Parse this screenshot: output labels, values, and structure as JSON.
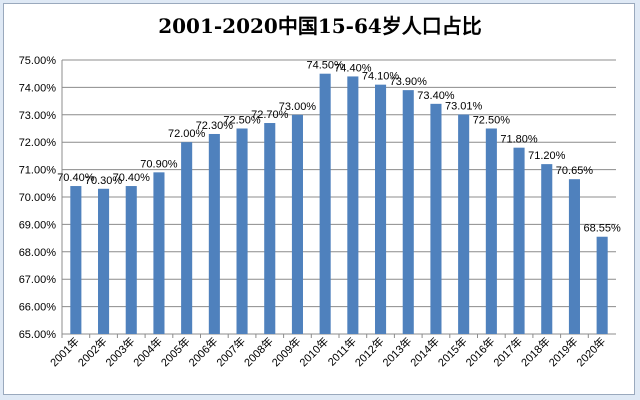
{
  "chart_data": {
    "type": "bar",
    "title": "2001-2020中国15-64岁人口占比",
    "xlabel": "",
    "ylabel": "",
    "ylim": [
      65,
      75
    ],
    "y_ticks": [
      "65.00%",
      "66.00%",
      "67.00%",
      "68.00%",
      "69.00%",
      "70.00%",
      "71.00%",
      "72.00%",
      "73.00%",
      "74.00%",
      "75.00%"
    ],
    "grid": true,
    "legend": "none",
    "bar_color": "#4f81bd",
    "categories": [
      "2001年",
      "2002年",
      "2003年",
      "2004年",
      "2005年",
      "2006年",
      "2007年",
      "2008年",
      "2009年",
      "2010年",
      "2011年",
      "2012年",
      "2013年",
      "2014年",
      "2015年",
      "2016年",
      "2017年",
      "2018年",
      "2019年",
      "2020年"
    ],
    "values": [
      70.4,
      70.3,
      70.4,
      70.9,
      72.0,
      72.3,
      72.5,
      72.7,
      73.0,
      74.5,
      74.4,
      74.1,
      73.9,
      73.4,
      73.01,
      72.5,
      71.8,
      71.2,
      70.65,
      68.55
    ],
    "data_labels": [
      "70.40%",
      "70.30%",
      "70.40%",
      "70.90%",
      "72.00%",
      "72.30%",
      "72.50%",
      "72.70%",
      "73.00%",
      "74.50%",
      "74.40%",
      "74.10%",
      "73.90%",
      "73.40%",
      "73.01%",
      "72.50%",
      "71.80%",
      "71.20%",
      "70.65%",
      "68.55%"
    ]
  }
}
